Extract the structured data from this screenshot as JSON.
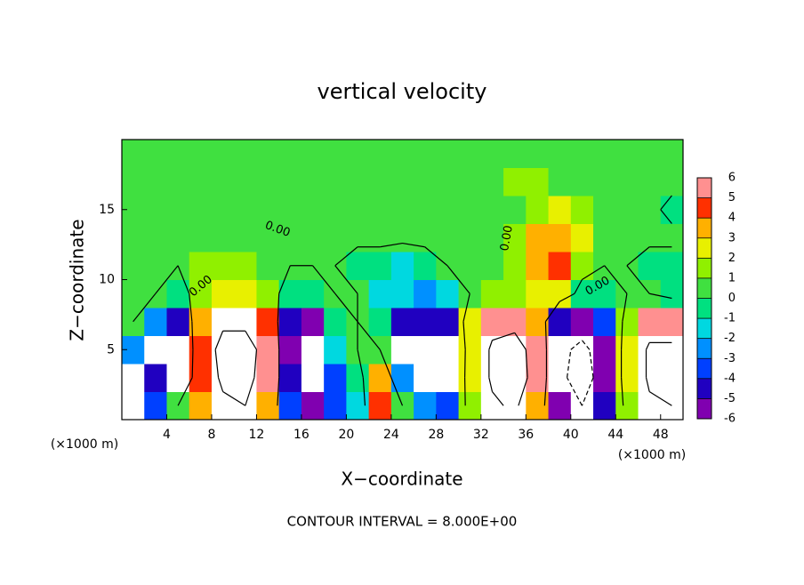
{
  "chart_data": {
    "type": "contourf",
    "title": "vertical velocity",
    "xlabel": "X−coordinate",
    "ylabel": "Z−coordinate",
    "x_unit_left": "(×1000 m)",
    "x_unit_right": "(×1000 m)",
    "footer": "CONTOUR INTERVAL = 8.000E+00",
    "xlim": [
      0,
      50
    ],
    "ylim": [
      0,
      20
    ],
    "xticks": [
      4,
      8,
      12,
      16,
      20,
      24,
      28,
      32,
      36,
      40,
      44,
      48
    ],
    "yticks": [
      5,
      10,
      15
    ],
    "x": [
      1,
      3,
      5,
      7,
      9,
      11,
      13,
      15,
      17,
      19,
      21,
      23,
      25,
      27,
      29,
      31,
      33,
      35,
      37,
      39,
      41,
      43,
      45,
      47,
      49
    ],
    "y": [
      1,
      3,
      5,
      7,
      9,
      11,
      13,
      15,
      17,
      19
    ],
    "z": [
      [
        -8,
        -4,
        0,
        3,
        7,
        8,
        3,
        -4,
        -6,
        -4,
        -2,
        4,
        0,
        -3,
        -4,
        1,
        7,
        9,
        3,
        -6,
        -8,
        -5,
        1,
        7,
        8
      ],
      [
        -8,
        -5,
        -7,
        4,
        9,
        10,
        5,
        -5,
        -8,
        -4,
        -1,
        3,
        -3,
        -8,
        -7,
        2,
        9,
        12,
        5,
        -7,
        -10,
        -6,
        2,
        9,
        10
      ],
      [
        -3,
        -7,
        -8,
        4,
        10,
        10,
        6,
        -6,
        -8,
        -2,
        0,
        0,
        -7,
        -8,
        -8,
        2,
        9,
        11,
        5,
        -7,
        -9,
        -6,
        2,
        9,
        9
      ],
      [
        0,
        -3,
        -5,
        3,
        7,
        7,
        4,
        -5,
        -6,
        -1,
        0,
        -1,
        -5,
        -5,
        -5,
        2,
        6,
        6,
        3,
        -5,
        -6,
        -4,
        1,
        5,
        5
      ],
      [
        0,
        0,
        -1,
        1,
        2,
        2,
        1,
        -1,
        -1,
        0,
        0,
        -2,
        -2,
        -3,
        -2,
        0,
        1,
        1,
        2,
        2,
        -1,
        -1,
        0,
        0,
        -1
      ],
      [
        0,
        0,
        0,
        1,
        1,
        1,
        0,
        0,
        0,
        0,
        -1,
        -1,
        -2,
        -1,
        0,
        0,
        0,
        1,
        3,
        4,
        1,
        0,
        0,
        -1,
        -1
      ],
      [
        0,
        0.5,
        0.5,
        0.5,
        0.5,
        0.5,
        0.5,
        0.5,
        0.5,
        0.5,
        0.5,
        0.5,
        0.5,
        0.5,
        0.5,
        0.5,
        0.5,
        1,
        3,
        3,
        2,
        0.5,
        0.5,
        0.5,
        0.5
      ],
      [
        0.5,
        0.5,
        0.5,
        0.5,
        0.5,
        0.5,
        0.5,
        0.5,
        0.5,
        0.5,
        0.5,
        0.5,
        0.5,
        0.5,
        0.5,
        0.5,
        0.5,
        0.5,
        1,
        2,
        1,
        0.5,
        0.5,
        0.5,
        -0.5
      ],
      [
        0.5,
        0.5,
        0.5,
        0.5,
        0.5,
        0.5,
        0.5,
        0.5,
        0.5,
        0.5,
        0.5,
        0.5,
        0.5,
        0.5,
        0.5,
        0.5,
        0.5,
        1,
        1,
        0.5,
        0.5,
        0.5,
        0.5,
        0.5,
        0.5
      ],
      [
        0.5,
        0.5,
        0.5,
        0.5,
        0.5,
        0.5,
        0.5,
        0.5,
        0.5,
        0.5,
        0.5,
        0.5,
        0.5,
        0.5,
        0.5,
        0.5,
        0.5,
        0.5,
        0.5,
        0.5,
        0.5,
        0.5,
        0.5,
        0.5,
        0.5
      ]
    ],
    "zlim": [
      -6,
      6
    ],
    "zticks": [
      -6,
      -5,
      -4,
      -3,
      -2,
      -1,
      0,
      1,
      2,
      3,
      4,
      5,
      6
    ],
    "colors": [
      "#8000b0",
      "#2000c0",
      "#0040ff",
      "#0090ff",
      "#00d8e0",
      "#00e080",
      "#40e040",
      "#90f000",
      "#e8f000",
      "#ffb000",
      "#ff3000",
      "#ff9090"
    ],
    "over_color": "#ffffff",
    "under_color": "#ffffff",
    "contour_levels": [
      -8,
      0,
      8
    ],
    "contour_labels": [
      "0.00",
      "0.00",
      "0.00",
      "0.00"
    ]
  }
}
